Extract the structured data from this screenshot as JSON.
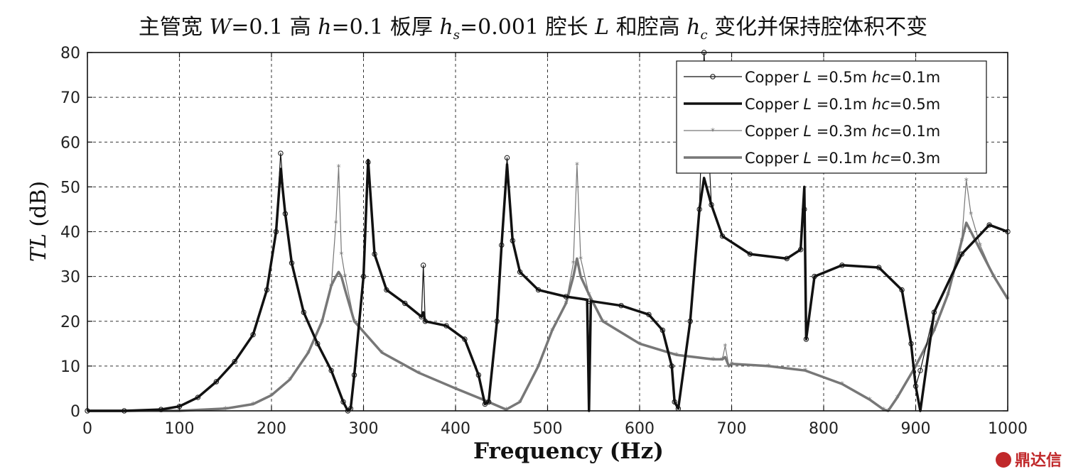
{
  "title": {
    "part1": "主管宽 ",
    "w_sym": "W",
    "part2": "=0.1 高 ",
    "h_sym": "h",
    "part3": "=0.1 板厚 ",
    "hs_sym": "h",
    "hs_sub": "s",
    "part4": "=0.001 腔长 ",
    "L_sym": "L",
    "part5": " 和腔高 ",
    "hc_sym": "h",
    "hc_sub": "c",
    "part6": " 变化并保持腔体积不变"
  },
  "watermark": "鼎达信",
  "watermark_logo": "seal-logo",
  "colors": {
    "black": "#111111",
    "gray": "#777777",
    "grid": "#333333"
  },
  "chart_data": {
    "type": "line",
    "xlabel": "Frequency (Hz)",
    "ylabel_sym": "TL",
    "ylabel_unit": " (dB)",
    "xlim": [
      0,
      1000
    ],
    "ylim": [
      0,
      80
    ],
    "xticks": [
      0,
      100,
      200,
      300,
      400,
      500,
      600,
      700,
      800,
      900,
      1000
    ],
    "yticks": [
      0,
      10,
      20,
      30,
      40,
      50,
      60,
      70,
      80
    ],
    "grid": true,
    "legend_position": "top-right",
    "series": [
      {
        "name": "Copper L =0.5m  hc=0.1m",
        "legend": {
          "material": "Copper",
          "L_sym": "L",
          "L_val": " =0.5m",
          "hc_sym": "hc",
          "hc_val": "=0.1m"
        },
        "color": "#111111",
        "width": 1.2,
        "marker": "circle",
        "x": [
          0,
          40,
          80,
          100,
          120,
          140,
          160,
          180,
          195,
          205,
          210,
          215,
          222,
          235,
          250,
          265,
          278,
          283,
          286,
          290,
          300,
          305,
          312,
          325,
          345,
          363,
          365,
          367,
          390,
          410,
          425,
          432,
          436,
          445,
          450,
          456,
          462,
          470,
          490,
          520,
          545,
          580,
          610,
          625,
          635,
          638,
          642,
          655,
          665,
          670,
          678,
          690,
          720,
          760,
          775,
          779,
          781,
          790,
          820,
          860,
          885,
          895,
          900,
          905,
          920,
          950,
          980,
          1000
        ],
        "y": [
          0,
          0,
          0.3,
          1,
          3,
          6.5,
          11,
          17,
          27,
          40,
          57.5,
          44,
          33,
          22,
          15,
          9,
          2,
          0,
          0.5,
          8,
          30,
          55.5,
          35,
          27,
          24,
          21,
          32.5,
          20,
          19,
          16,
          8,
          1.5,
          2,
          20,
          37,
          56.5,
          38,
          31,
          27,
          25.5,
          24.5,
          23.5,
          21.5,
          18,
          10,
          2,
          0.5,
          20,
          45,
          80,
          46,
          39,
          35,
          34,
          36,
          45,
          16,
          30,
          32.5,
          32,
          27,
          15,
          5.5,
          9,
          22,
          35,
          41.5,
          40
        ]
      },
      {
        "name": "Copper L =0.1m  hc=0.5m",
        "legend": {
          "material": "Copper",
          "L_sym": "L",
          "L_val": " =0.1m",
          "hc_sym": "hc",
          "hc_val": "=0.5m"
        },
        "color": "#111111",
        "width": 3.5,
        "marker": "none",
        "x": [
          0,
          40,
          80,
          100,
          120,
          140,
          160,
          180,
          195,
          205,
          210,
          215,
          222,
          235,
          250,
          265,
          278,
          283,
          286,
          290,
          300,
          305,
          312,
          325,
          345,
          363,
          365,
          367,
          390,
          410,
          425,
          432,
          436,
          445,
          450,
          456,
          462,
          470,
          490,
          520,
          543,
          545,
          547,
          580,
          610,
          625,
          635,
          638,
          642,
          655,
          665,
          670,
          678,
          690,
          720,
          760,
          775,
          779,
          781,
          790,
          820,
          860,
          885,
          895,
          900,
          905,
          920,
          950,
          980,
          1000
        ],
        "y": [
          0,
          0,
          0.3,
          1,
          3,
          6.5,
          11,
          17,
          27,
          40,
          54,
          44,
          33,
          22,
          15,
          9,
          2,
          0,
          0.5,
          8,
          30,
          56,
          35,
          27,
          24,
          21,
          22,
          20,
          19,
          16,
          8,
          1.5,
          2,
          20,
          37,
          55,
          38,
          31,
          27,
          25.5,
          24.8,
          0,
          24.5,
          23.5,
          21.5,
          18,
          10,
          2,
          0.5,
          20,
          45,
          52,
          46,
          39,
          35,
          34,
          36,
          50,
          16,
          30,
          32.5,
          32,
          27,
          15,
          5.5,
          0,
          22,
          35,
          41.5,
          40
        ]
      },
      {
        "name": "Copper L =0.3m  hc=0.1m",
        "legend": {
          "material": "Copper",
          "L_sym": "L",
          "L_val": " =0.3m",
          "hc_sym": "hc",
          "hc_val": "=0.1m"
        },
        "color": "#777777",
        "width": 1.2,
        "marker": "star",
        "x": [
          0,
          100,
          150,
          180,
          200,
          220,
          240,
          255,
          265,
          270,
          273,
          276,
          280,
          290,
          320,
          360,
          400,
          430,
          455,
          470,
          490,
          505,
          520,
          528,
          532,
          536,
          545,
          560,
          600,
          640,
          680,
          690,
          693,
          697,
          700,
          740,
          780,
          820,
          850,
          865,
          870,
          880,
          900,
          920,
          935,
          950,
          955,
          960,
          970,
          985,
          1000
        ],
        "y": [
          0,
          0,
          0.5,
          1.5,
          3.5,
          7,
          13,
          20,
          28,
          42,
          54.5,
          35,
          30,
          20,
          13,
          8.5,
          5,
          2.5,
          0.3,
          2,
          10,
          18,
          24,
          33,
          55,
          34,
          26,
          20,
          15,
          12.5,
          11.5,
          11.5,
          14.5,
          10,
          10.5,
          10,
          9,
          6,
          2.5,
          0.3,
          0,
          3,
          10,
          18,
          26,
          38,
          51.5,
          44,
          37,
          30,
          25
        ]
      },
      {
        "name": "Copper L =0.1m  hc=0.3m",
        "legend": {
          "material": "Copper",
          "L_sym": "L",
          "L_val": " =0.1m",
          "hc_sym": "hc",
          "hc_val": "=0.3m"
        },
        "color": "#777777",
        "width": 3.5,
        "marker": "none",
        "x": [
          0,
          100,
          150,
          180,
          200,
          220,
          240,
          255,
          265,
          270,
          273,
          276,
          280,
          290,
          320,
          360,
          400,
          430,
          455,
          470,
          490,
          505,
          520,
          528,
          532,
          536,
          545,
          560,
          600,
          640,
          680,
          690,
          693,
          697,
          700,
          740,
          780,
          820,
          850,
          865,
          870,
          880,
          900,
          920,
          935,
          950,
          955,
          960,
          970,
          985,
          1000
        ],
        "y": [
          0,
          0,
          0.5,
          1.5,
          3.5,
          7,
          13,
          20,
          28,
          30,
          31,
          30,
          27,
          20,
          13,
          8.5,
          5,
          2.5,
          0.3,
          2,
          10,
          18,
          24,
          30,
          34,
          30,
          26,
          20,
          15,
          12.5,
          11.5,
          11.5,
          12,
          10,
          10.5,
          10,
          9,
          6,
          2.5,
          0.3,
          0,
          3,
          10,
          18,
          26,
          38,
          42,
          40,
          36,
          30,
          25
        ]
      }
    ]
  }
}
